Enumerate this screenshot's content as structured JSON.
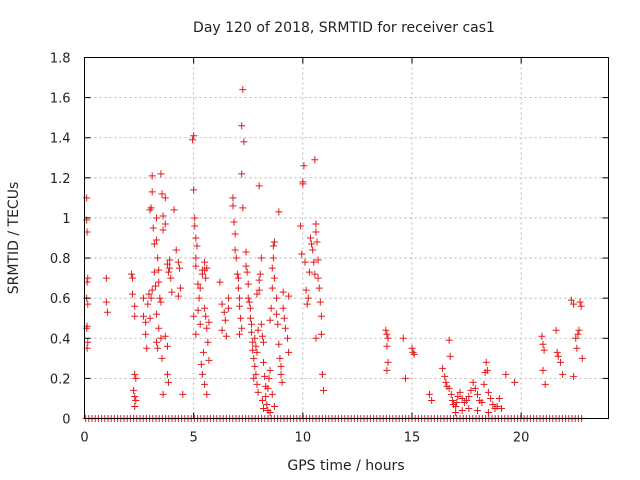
{
  "chart_data": {
    "type": "scatter",
    "title": "Day 120 of 2018, SRMTID for receiver cas1",
    "xlabel": "GPS time / hours",
    "ylabel": "SRMTID / TECUs",
    "xlim": [
      0,
      24
    ],
    "ylim": [
      0,
      1.8
    ],
    "xticks": [
      0,
      5,
      10,
      15,
      20
    ],
    "xtick_labels": [
      "0",
      "5",
      "10",
      "15",
      "20"
    ],
    "yticks": [
      0,
      0.2,
      0.4,
      0.6,
      0.8,
      1.0,
      1.2,
      1.4,
      1.6,
      1.8
    ],
    "ytick_labels": [
      "0",
      "0.2",
      "0.4",
      "0.6",
      "0.8",
      "1",
      "1.2",
      "1.4",
      "1.6",
      "1.8"
    ],
    "grid": true,
    "marker": "+",
    "color": "#e41a1c",
    "baseline_zero_ranges": [
      [
        0.05,
        22.8
      ]
    ],
    "series": [
      {
        "name": "SRMTID",
        "points": [
          [
            0.1,
            1.1
          ],
          [
            0.1,
            0.99
          ],
          [
            0.12,
            0.93
          ],
          [
            0.15,
            0.7
          ],
          [
            0.12,
            0.68
          ],
          [
            0.1,
            0.6
          ],
          [
            0.15,
            0.57
          ],
          [
            0.12,
            0.46
          ],
          [
            0.1,
            0.45
          ],
          [
            0.15,
            0.38
          ],
          [
            0.12,
            0.35
          ],
          [
            1.0,
            0.7
          ],
          [
            1.0,
            0.58
          ],
          [
            1.05,
            0.53
          ],
          [
            2.15,
            0.72
          ],
          [
            2.2,
            0.7
          ],
          [
            2.2,
            0.62
          ],
          [
            2.3,
            0.56
          ],
          [
            2.3,
            0.51
          ],
          [
            2.3,
            0.22
          ],
          [
            2.35,
            0.2
          ],
          [
            2.25,
            0.14
          ],
          [
            2.3,
            0.11
          ],
          [
            2.35,
            0.09
          ],
          [
            2.3,
            0.06
          ],
          [
            2.7,
            0.6
          ],
          [
            2.7,
            0.51
          ],
          [
            2.8,
            0.48
          ],
          [
            2.8,
            0.42
          ],
          [
            2.85,
            0.35
          ],
          [
            2.9,
            0.57
          ],
          [
            2.95,
            0.62
          ],
          [
            3.0,
            0.5
          ],
          [
            3.05,
            0.6
          ],
          [
            3.1,
            0.64
          ],
          [
            3.0,
            1.04
          ],
          [
            3.05,
            1.05
          ],
          [
            3.1,
            1.13
          ],
          [
            3.1,
            1.21
          ],
          [
            3.15,
            0.95
          ],
          [
            3.2,
            0.87
          ],
          [
            3.2,
            0.73
          ],
          [
            3.25,
            0.66
          ],
          [
            3.3,
            1.0
          ],
          [
            3.3,
            0.89
          ],
          [
            3.35,
            0.8
          ],
          [
            3.4,
            0.74
          ],
          [
            3.4,
            0.68
          ],
          [
            3.45,
            0.6
          ],
          [
            3.5,
            0.58
          ],
          [
            3.5,
            1.22
          ],
          [
            3.55,
            1.12
          ],
          [
            3.6,
            1.01
          ],
          [
            3.6,
            0.94
          ],
          [
            3.7,
            1.1
          ],
          [
            3.7,
            0.97
          ],
          [
            3.3,
            0.52
          ],
          [
            3.4,
            0.45
          ],
          [
            3.5,
            0.4
          ],
          [
            3.55,
            0.3
          ],
          [
            3.6,
            0.12
          ],
          [
            3.7,
            0.41
          ],
          [
            3.8,
            0.36
          ],
          [
            3.8,
            0.22
          ],
          [
            3.85,
            0.18
          ],
          [
            3.3,
            0.38
          ],
          [
            3.35,
            0.35
          ],
          [
            3.8,
            0.77
          ],
          [
            3.85,
            0.73
          ],
          [
            3.9,
            0.75
          ],
          [
            3.9,
            0.79
          ],
          [
            3.95,
            0.7
          ],
          [
            4.0,
            0.63
          ],
          [
            4.1,
            1.04
          ],
          [
            4.2,
            0.84
          ],
          [
            4.3,
            0.78
          ],
          [
            4.35,
            0.75
          ],
          [
            4.3,
            0.61
          ],
          [
            4.4,
            0.65
          ],
          [
            4.5,
            0.12
          ],
          [
            4.95,
            1.39
          ],
          [
            5.0,
            1.41
          ],
          [
            5.0,
            1.14
          ],
          [
            5.05,
            1.0
          ],
          [
            5.05,
            0.96
          ],
          [
            5.1,
            0.9
          ],
          [
            5.15,
            0.86
          ],
          [
            5.1,
            0.8
          ],
          [
            5.1,
            0.76
          ],
          [
            5.2,
            0.67
          ],
          [
            5.25,
            0.6
          ],
          [
            5.0,
            0.51
          ],
          [
            5.1,
            0.42
          ],
          [
            5.2,
            0.54
          ],
          [
            5.3,
            0.65
          ],
          [
            5.4,
            0.74
          ],
          [
            5.4,
            0.72
          ],
          [
            5.5,
            0.78
          ],
          [
            5.5,
            0.74
          ],
          [
            5.55,
            0.7
          ],
          [
            5.6,
            0.75
          ],
          [
            5.5,
            0.55
          ],
          [
            5.55,
            0.51
          ],
          [
            5.6,
            0.45
          ],
          [
            5.65,
            0.38
          ],
          [
            5.7,
            0.48
          ],
          [
            5.7,
            0.29
          ],
          [
            5.35,
            0.27
          ],
          [
            5.4,
            0.22
          ],
          [
            5.5,
            0.17
          ],
          [
            5.6,
            0.12
          ],
          [
            5.45,
            0.33
          ],
          [
            5.3,
            0.47
          ],
          [
            6.2,
            0.68
          ],
          [
            6.3,
            0.57
          ],
          [
            6.4,
            0.53
          ],
          [
            6.45,
            0.49
          ],
          [
            6.3,
            0.44
          ],
          [
            6.5,
            0.41
          ],
          [
            6.6,
            0.6
          ],
          [
            6.6,
            0.55
          ],
          [
            6.8,
            1.1
          ],
          [
            6.8,
            1.06
          ],
          [
            6.85,
            0.98
          ],
          [
            6.9,
            0.92
          ],
          [
            6.9,
            0.84
          ],
          [
            6.95,
            0.8
          ],
          [
            7.0,
            0.72
          ],
          [
            7.05,
            0.7
          ],
          [
            7.05,
            0.65
          ],
          [
            7.1,
            0.6
          ],
          [
            7.1,
            0.56
          ],
          [
            7.15,
            0.5
          ],
          [
            7.2,
            0.45
          ],
          [
            7.1,
            0.42
          ],
          [
            7.2,
            1.46
          ],
          [
            7.2,
            1.22
          ],
          [
            7.25,
            1.05
          ],
          [
            7.3,
            1.38
          ],
          [
            7.25,
            1.64
          ],
          [
            7.4,
            0.83
          ],
          [
            7.4,
            0.76
          ],
          [
            7.45,
            0.73
          ],
          [
            7.5,
            0.67
          ],
          [
            7.5,
            0.6
          ],
          [
            7.55,
            0.58
          ],
          [
            7.6,
            0.55
          ],
          [
            7.6,
            0.5
          ],
          [
            7.65,
            0.47
          ],
          [
            7.65,
            0.43
          ],
          [
            7.7,
            0.38
          ],
          [
            7.7,
            0.34
          ],
          [
            7.75,
            0.3
          ],
          [
            7.8,
            0.26
          ],
          [
            7.85,
            0.22
          ],
          [
            7.8,
            0.4
          ],
          [
            7.85,
            0.36
          ],
          [
            7.9,
            0.33
          ],
          [
            7.95,
            0.44
          ],
          [
            7.9,
            0.62
          ],
          [
            8.0,
            0.64
          ],
          [
            8.0,
            0.69
          ],
          [
            8.05,
            0.72
          ],
          [
            8.1,
            0.8
          ],
          [
            8.0,
            1.16
          ],
          [
            8.1,
            0.47
          ],
          [
            8.15,
            0.41
          ],
          [
            8.2,
            0.38
          ],
          [
            8.2,
            0.28
          ],
          [
            8.25,
            0.21
          ],
          [
            8.3,
            0.16
          ],
          [
            8.3,
            0.11
          ],
          [
            8.35,
            0.07
          ],
          [
            8.4,
            0.04
          ],
          [
            8.4,
            0.15
          ],
          [
            8.45,
            0.2
          ],
          [
            8.5,
            0.24
          ],
          [
            8.5,
            0.49
          ],
          [
            8.55,
            0.55
          ],
          [
            8.6,
            0.65
          ],
          [
            8.6,
            0.75
          ],
          [
            8.65,
            0.86
          ],
          [
            8.7,
            0.88
          ],
          [
            8.65,
            0.8
          ],
          [
            8.7,
            0.7
          ],
          [
            8.8,
            0.6
          ],
          [
            8.8,
            0.52
          ],
          [
            8.85,
            0.47
          ],
          [
            8.9,
            1.03
          ],
          [
            8.9,
            0.37
          ],
          [
            8.95,
            0.3
          ],
          [
            9.0,
            0.26
          ],
          [
            9.0,
            0.22
          ],
          [
            9.05,
            0.18
          ],
          [
            9.1,
            0.63
          ],
          [
            9.1,
            0.55
          ],
          [
            9.15,
            0.5
          ],
          [
            9.2,
            0.45
          ],
          [
            9.3,
            0.4
          ],
          [
            9.35,
            0.33
          ],
          [
            9.35,
            0.61
          ],
          [
            8.6,
            0.12
          ],
          [
            8.7,
            0.06
          ],
          [
            8.5,
            0.03
          ],
          [
            8.2,
            0.05
          ],
          [
            8.15,
            0.09
          ],
          [
            7.95,
            0.13
          ],
          [
            7.9,
            0.17
          ],
          [
            7.75,
            0.2
          ],
          [
            9.9,
            0.96
          ],
          [
            9.95,
            0.82
          ],
          [
            10.0,
            1.18
          ],
          [
            10.0,
            1.17
          ],
          [
            10.05,
            1.26
          ],
          [
            10.1,
            0.78
          ],
          [
            10.15,
            0.64
          ],
          [
            10.2,
            0.57
          ],
          [
            10.25,
            0.6
          ],
          [
            10.3,
            0.73
          ],
          [
            10.35,
            0.9
          ],
          [
            10.4,
            0.87
          ],
          [
            10.45,
            0.84
          ],
          [
            10.5,
            0.78
          ],
          [
            10.55,
            0.72
          ],
          [
            10.55,
            1.29
          ],
          [
            10.6,
            0.97
          ],
          [
            10.6,
            0.93
          ],
          [
            10.65,
            0.88
          ],
          [
            10.7,
            0.79
          ],
          [
            10.7,
            0.7
          ],
          [
            10.75,
            0.65
          ],
          [
            10.8,
            0.58
          ],
          [
            10.85,
            0.51
          ],
          [
            10.85,
            0.42
          ],
          [
            10.9,
            0.22
          ],
          [
            10.95,
            0.14
          ],
          [
            10.6,
            0.4
          ],
          [
            13.8,
            0.44
          ],
          [
            13.85,
            0.42
          ],
          [
            13.9,
            0.4
          ],
          [
            13.85,
            0.36
          ],
          [
            13.9,
            0.28
          ],
          [
            13.85,
            0.24
          ],
          [
            14.6,
            0.4
          ],
          [
            14.7,
            0.2
          ],
          [
            15.0,
            0.35
          ],
          [
            15.05,
            0.33
          ],
          [
            15.1,
            0.32
          ],
          [
            15.8,
            0.12
          ],
          [
            15.9,
            0.09
          ],
          [
            16.4,
            0.25
          ],
          [
            16.5,
            0.21
          ],
          [
            16.55,
            0.18
          ],
          [
            16.6,
            0.16
          ],
          [
            16.7,
            0.39
          ],
          [
            16.75,
            0.31
          ],
          [
            16.7,
            0.15
          ],
          [
            16.8,
            0.12
          ],
          [
            16.85,
            0.09
          ],
          [
            16.9,
            0.07
          ],
          [
            17.0,
            0.06
          ],
          [
            17.05,
            0.08
          ],
          [
            17.1,
            0.11
          ],
          [
            17.2,
            0.13
          ],
          [
            17.3,
            0.1
          ],
          [
            17.4,
            0.08
          ],
          [
            17.5,
            0.09
          ],
          [
            17.6,
            0.11
          ],
          [
            17.7,
            0.14
          ],
          [
            17.8,
            0.18
          ],
          [
            17.9,
            0.15
          ],
          [
            18.0,
            0.12
          ],
          [
            18.1,
            0.09
          ],
          [
            18.2,
            0.08
          ],
          [
            18.3,
            0.17
          ],
          [
            18.35,
            0.23
          ],
          [
            18.4,
            0.28
          ],
          [
            18.45,
            0.24
          ],
          [
            18.5,
            0.13
          ],
          [
            18.6,
            0.1
          ],
          [
            18.7,
            0.07
          ],
          [
            18.8,
            0.05
          ],
          [
            18.9,
            0.06
          ],
          [
            19.0,
            0.1
          ],
          [
            19.1,
            0.05
          ],
          [
            17.0,
            0.03
          ],
          [
            17.3,
            0.04
          ],
          [
            17.6,
            0.05
          ],
          [
            18.0,
            0.04
          ],
          [
            18.5,
            0.03
          ],
          [
            19.3,
            0.22
          ],
          [
            19.7,
            0.18
          ],
          [
            20.95,
            0.41
          ],
          [
            21.0,
            0.37
          ],
          [
            21.05,
            0.34
          ],
          [
            21.0,
            0.24
          ],
          [
            21.1,
            0.17
          ],
          [
            21.6,
            0.44
          ],
          [
            21.65,
            0.33
          ],
          [
            21.7,
            0.31
          ],
          [
            21.8,
            0.28
          ],
          [
            21.9,
            0.22
          ],
          [
            22.3,
            0.59
          ],
          [
            22.4,
            0.57
          ],
          [
            22.5,
            0.4
          ],
          [
            22.55,
            0.35
          ],
          [
            22.6,
            0.42
          ],
          [
            22.65,
            0.44
          ],
          [
            22.7,
            0.58
          ],
          [
            22.75,
            0.56
          ],
          [
            22.8,
            0.3
          ],
          [
            22.4,
            0.21
          ]
        ]
      }
    ]
  }
}
